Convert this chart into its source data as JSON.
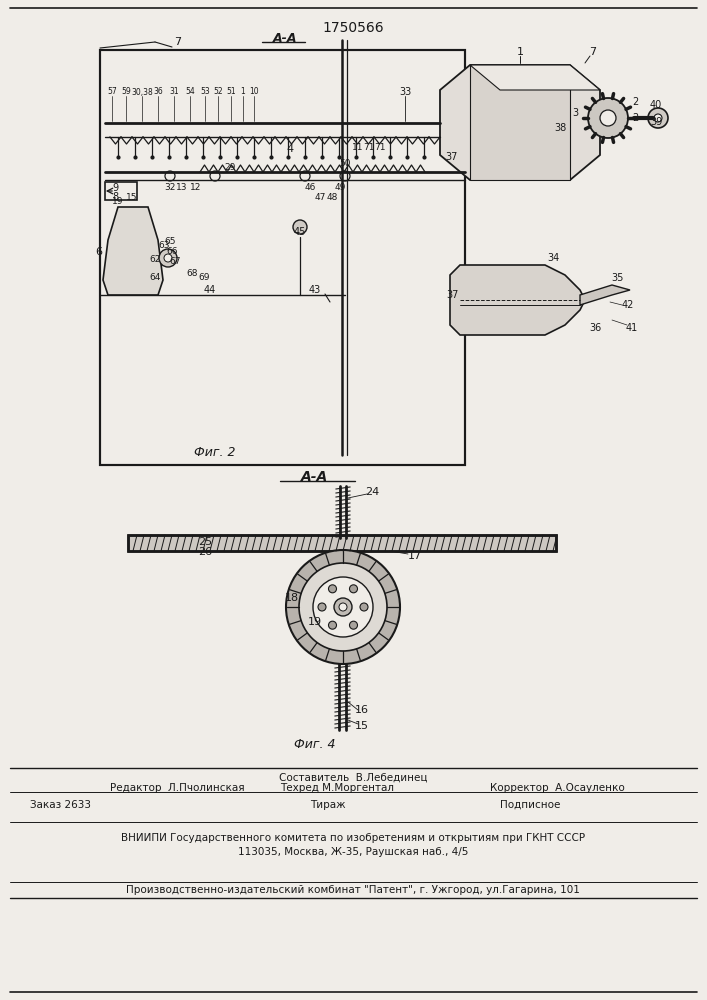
{
  "patent_number": "1750566",
  "bg_color": "#f0ede8",
  "line_color": "#1a1a1a",
  "fig2_label": "Фиг. 2",
  "fig4_label": "Фиг. 4",
  "fig_aa_label": "А-А",
  "footer_line1_left": "Редактор  Л.Пчолинская",
  "footer_line1_center": "Техред М.Моргентал",
  "footer_line1_right": "Корректор  А.Осауленко",
  "footer_составитель": "Составитель  В.Лебединец",
  "footer_заказ": "Заказ 2633",
  "footer_тираж": "Тираж",
  "footer_подписное": "Подписное",
  "footer_вниипи": "ВНИИПИ Государственного комитета по изобретениям и открытиям при ГКНТ СССР",
  "footer_address": "113035, Москва, Ж-35, Раушская наб., 4/5",
  "footer_publisher": "Производственно-издательский комбинат \"Патент\", г. Ужгород, ул.Гагарина, 101"
}
